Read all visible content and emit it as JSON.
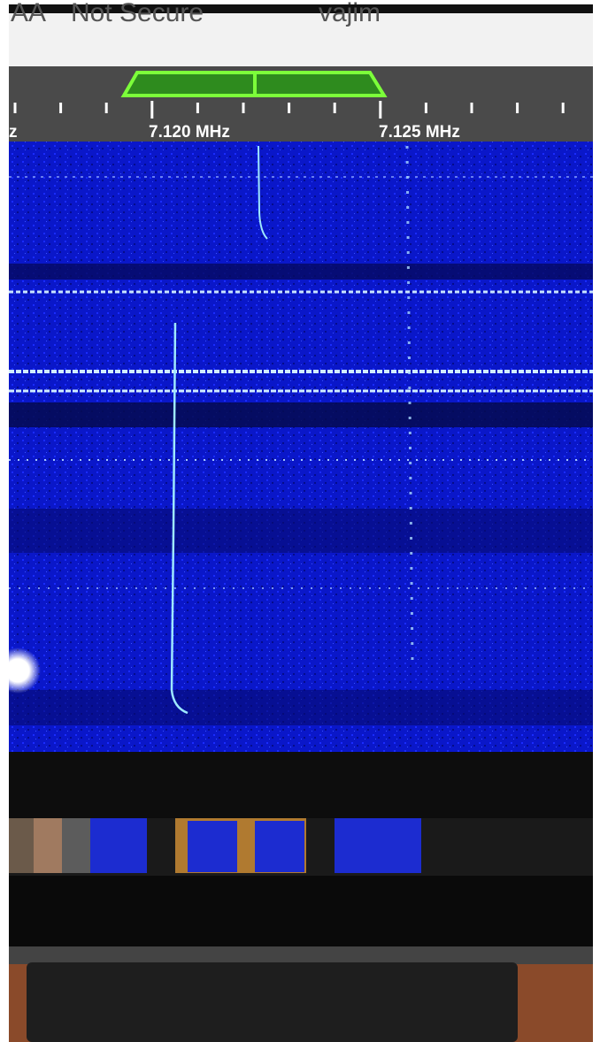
{
  "browser_bar": {
    "reader_button": "AA",
    "security": "Not Secure",
    "url": "vajim"
  },
  "frequency_scale": {
    "labels": [
      "z",
      "7.120 MHz",
      "7.125 MHz"
    ]
  }
}
